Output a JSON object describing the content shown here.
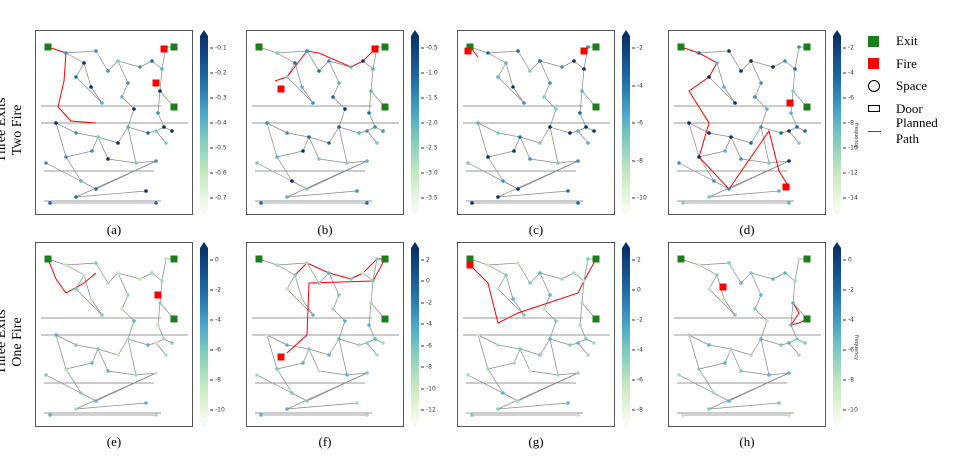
{
  "row_labels": [
    [
      "Three Exits",
      "Two Fire"
    ],
    [
      "Three Exits",
      "One Fire"
    ]
  ],
  "panels": [
    {
      "label": "(a)",
      "ticks": [
        "-0.1",
        "-0.2",
        "-0.3",
        "-0.4",
        "-0.5",
        "-0.6",
        "-0.7"
      ],
      "cbar_label": ""
    },
    {
      "label": "(b)",
      "ticks": [
        "-0.5",
        "-1.0",
        "-1.5",
        "-2.0",
        "-2.5",
        "-3.0",
        "-3.5"
      ],
      "cbar_label": ""
    },
    {
      "label": "(c)",
      "ticks": [
        "-2",
        "-4",
        "-6",
        "-8",
        "-10"
      ],
      "cbar_label": ""
    },
    {
      "label": "(d)",
      "ticks": [
        "-2",
        "-4",
        "-6",
        "-8",
        "-10",
        "-12",
        "-14"
      ],
      "cbar_label": "frequency"
    },
    {
      "label": "(e)",
      "ticks": [
        "0",
        "-2",
        "-4",
        "-6",
        "-8",
        "-10"
      ],
      "cbar_label": ""
    },
    {
      "label": "(f)",
      "ticks": [
        "2",
        "0",
        "-2",
        "-4",
        "-6",
        "-8",
        "-10",
        "-12"
      ],
      "cbar_label": ""
    },
    {
      "label": "(g)",
      "ticks": [
        "2",
        "0",
        "-2",
        "-4",
        "-6",
        "-8"
      ],
      "cbar_label": ""
    },
    {
      "label": "(h)",
      "ticks": [
        "0",
        "-2",
        "-4",
        "-6",
        "-8",
        "-10"
      ],
      "cbar_label": "frequency"
    }
  ],
  "legend": [
    {
      "label": "Exit",
      "icon": "green-square",
      "color": "#1a7f1a"
    },
    {
      "label": "Fire",
      "icon": "red-square",
      "color": "#ff0000"
    },
    {
      "label": "Space",
      "icon": "circle"
    },
    {
      "label": "Door",
      "icon": "rectangle"
    },
    {
      "label": "Planned Path",
      "icon": "red-line",
      "color": "#ff0000"
    }
  ]
}
